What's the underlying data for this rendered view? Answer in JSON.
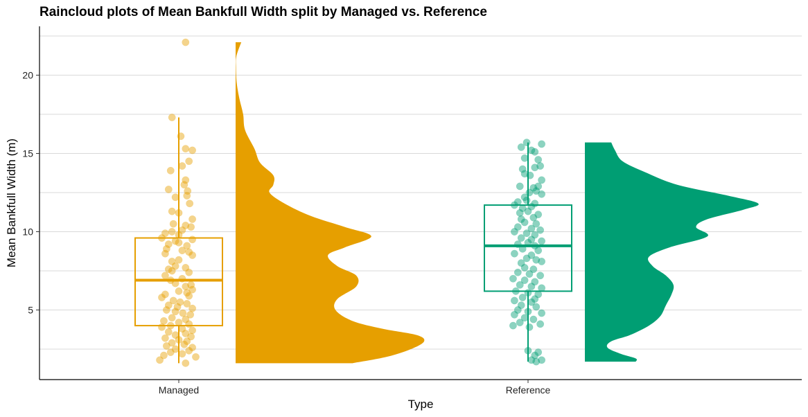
{
  "chart_data": {
    "type": "raincloud",
    "title": "Raincloud plots of Mean Bankfull Width split by Managed vs. Reference",
    "xlabel": "Type",
    "ylabel": "Mean Bankfull Width (m)",
    "ylim": [
      1.5,
      22.3
    ],
    "yticks": [
      5,
      10,
      15,
      20
    ],
    "grid": "horizontal",
    "legend": "none",
    "categories": [
      "Managed",
      "Reference"
    ],
    "series": [
      {
        "name": "Managed",
        "color": "#E69F00",
        "box": {
          "min": 1.6,
          "q1": 4.0,
          "median": 6.9,
          "q3": 9.6,
          "max": 17.3
        },
        "range": [
          1.6,
          22.1
        ],
        "density": [
          [
            1.6,
            0.62
          ],
          [
            2.0,
            0.8
          ],
          [
            2.5,
            0.93
          ],
          [
            3.0,
            1.0
          ],
          [
            3.4,
            0.96
          ],
          [
            3.8,
            0.78
          ],
          [
            4.3,
            0.62
          ],
          [
            5.0,
            0.53
          ],
          [
            5.7,
            0.54
          ],
          [
            6.5,
            0.64
          ],
          [
            7.2,
            0.64
          ],
          [
            7.8,
            0.54
          ],
          [
            8.5,
            0.49
          ],
          [
            9.0,
            0.58
          ],
          [
            9.7,
            0.72
          ],
          [
            10.3,
            0.58
          ],
          [
            11.0,
            0.4
          ],
          [
            11.8,
            0.26
          ],
          [
            12.5,
            0.18
          ],
          [
            13.0,
            0.2
          ],
          [
            13.6,
            0.2
          ],
          [
            14.4,
            0.13
          ],
          [
            15.3,
            0.1
          ],
          [
            16.5,
            0.05
          ],
          [
            17.5,
            0.04
          ],
          [
            18.5,
            0.02
          ],
          [
            19.5,
            0.006
          ],
          [
            20.5,
            0.002
          ],
          [
            21.2,
            0.004
          ],
          [
            22.1,
            0.03
          ]
        ],
        "points": [
          [
            0.1,
            22.1
          ],
          [
            -0.1,
            17.3
          ],
          [
            0.03,
            16.1
          ],
          [
            0.1,
            15.3
          ],
          [
            0.2,
            15.2
          ],
          [
            0.15,
            14.5
          ],
          [
            -0.12,
            13.9
          ],
          [
            0.05,
            14.2
          ],
          [
            0.1,
            13.3
          ],
          [
            -0.15,
            12.7
          ],
          [
            0.08,
            13.0
          ],
          [
            0.13,
            12.6
          ],
          [
            -0.05,
            12.2
          ],
          [
            0.12,
            12.3
          ],
          [
            0.16,
            11.8
          ],
          [
            -0.1,
            11.3
          ],
          [
            0.0,
            11.2
          ],
          [
            0.2,
            10.8
          ],
          [
            -0.08,
            10.5
          ],
          [
            0.1,
            10.4
          ],
          [
            0.18,
            10.3
          ],
          [
            -0.2,
            9.9
          ],
          [
            -0.1,
            10.0
          ],
          [
            0.0,
            9.8
          ],
          [
            0.05,
            10.1
          ],
          [
            -0.25,
            9.6
          ],
          [
            -0.05,
            9.4
          ],
          [
            -0.15,
            9.2
          ],
          [
            0.0,
            9.3
          ],
          [
            0.12,
            9.1
          ],
          [
            0.2,
            9.5
          ],
          [
            -0.18,
            8.9
          ],
          [
            -0.2,
            8.6
          ],
          [
            0.05,
            8.8
          ],
          [
            0.15,
            8.7
          ],
          [
            0.2,
            8.5
          ],
          [
            -0.1,
            8.1
          ],
          [
            0.0,
            8.2
          ],
          [
            -0.05,
            7.8
          ],
          [
            0.1,
            7.7
          ],
          [
            -0.15,
            7.6
          ],
          [
            0.15,
            7.4
          ],
          [
            -0.2,
            7.2
          ],
          [
            -0.1,
            7.5
          ],
          [
            0.05,
            7.0
          ],
          [
            -0.12,
            6.9
          ],
          [
            0.18,
            6.6
          ],
          [
            0.1,
            6.5
          ],
          [
            -0.05,
            6.7
          ],
          [
            0.2,
            6.3
          ],
          [
            0.12,
            6.1
          ],
          [
            -0.2,
            6.0
          ],
          [
            0.0,
            6.2
          ],
          [
            0.15,
            5.9
          ],
          [
            -0.25,
            5.8
          ],
          [
            -0.08,
            5.6
          ],
          [
            0.02,
            5.5
          ],
          [
            0.12,
            5.4
          ],
          [
            -0.15,
            5.3
          ],
          [
            -0.02,
            5.2
          ],
          [
            0.2,
            5.1
          ],
          [
            -0.18,
            5.0
          ],
          [
            -0.05,
            4.9
          ],
          [
            0.06,
            4.8
          ],
          [
            0.17,
            4.7
          ],
          [
            -0.1,
            4.5
          ],
          [
            0.1,
            4.4
          ],
          [
            -0.22,
            4.3
          ],
          [
            0.0,
            4.2
          ],
          [
            0.15,
            4.1
          ],
          [
            -0.12,
            4.0
          ],
          [
            -0.25,
            3.9
          ],
          [
            0.05,
            3.8
          ],
          [
            0.2,
            3.7
          ],
          [
            -0.15,
            3.6
          ],
          [
            0.1,
            3.5
          ],
          [
            -0.05,
            3.4
          ],
          [
            0.18,
            3.3
          ],
          [
            -0.2,
            3.2
          ],
          [
            0.0,
            3.1
          ],
          [
            0.12,
            3.0
          ],
          [
            -0.1,
            2.9
          ],
          [
            0.08,
            2.8
          ],
          [
            -0.18,
            2.7
          ],
          [
            0.2,
            2.6
          ],
          [
            -0.05,
            2.5
          ],
          [
            0.15,
            2.4
          ],
          [
            -0.12,
            2.3
          ],
          [
            0.05,
            2.2
          ],
          [
            -0.22,
            2.1
          ],
          [
            0.25,
            2.0
          ],
          [
            -0.28,
            1.8
          ],
          [
            0.1,
            1.6
          ]
        ]
      },
      {
        "name": "Reference",
        "color": "#009E73",
        "box": {
          "min": 1.7,
          "q1": 6.2,
          "median": 9.1,
          "q3": 11.7,
          "max": 15.7
        },
        "range": [
          1.7,
          15.7
        ],
        "density": [
          [
            1.7,
            0.27
          ],
          [
            1.9,
            0.27
          ],
          [
            2.2,
            0.19
          ],
          [
            2.6,
            0.12
          ],
          [
            3.0,
            0.14
          ],
          [
            3.4,
            0.24
          ],
          [
            4.0,
            0.34
          ],
          [
            4.6,
            0.4
          ],
          [
            5.3,
            0.43
          ],
          [
            6.0,
            0.46
          ],
          [
            6.6,
            0.47
          ],
          [
            7.2,
            0.43
          ],
          [
            7.8,
            0.36
          ],
          [
            8.4,
            0.34
          ],
          [
            9.0,
            0.45
          ],
          [
            9.7,
            0.65
          ],
          [
            10.3,
            0.59
          ],
          [
            10.8,
            0.65
          ],
          [
            11.4,
            0.84
          ],
          [
            11.8,
            0.92
          ],
          [
            12.3,
            0.76
          ],
          [
            13.0,
            0.49
          ],
          [
            13.8,
            0.32
          ],
          [
            14.5,
            0.2
          ],
          [
            15.2,
            0.16
          ],
          [
            15.7,
            0.14
          ]
        ],
        "points": [
          [
            -0.1,
            15.4
          ],
          [
            -0.02,
            15.7
          ],
          [
            0.05,
            15.2
          ],
          [
            0.1,
            15.1
          ],
          [
            0.2,
            15.6
          ],
          [
            -0.05,
            14.7
          ],
          [
            0.15,
            14.6
          ],
          [
            -0.08,
            14.0
          ],
          [
            0.1,
            14.1
          ],
          [
            0.18,
            14.2
          ],
          [
            -0.05,
            13.7
          ],
          [
            0.03,
            13.6
          ],
          [
            0.2,
            13.3
          ],
          [
            -0.12,
            12.9
          ],
          [
            0.08,
            12.8
          ],
          [
            0.15,
            12.9
          ],
          [
            0.02,
            12.5
          ],
          [
            0.12,
            12.6
          ],
          [
            -0.05,
            12.2
          ],
          [
            0.2,
            12.4
          ],
          [
            -0.15,
            11.9
          ],
          [
            -0.02,
            12.0
          ],
          [
            0.1,
            11.8
          ],
          [
            -0.2,
            11.7
          ],
          [
            -0.08,
            11.5
          ],
          [
            0.05,
            11.6
          ],
          [
            -0.12,
            11.2
          ],
          [
            0.0,
            11.3
          ],
          [
            0.15,
            11.1
          ],
          [
            -0.1,
            10.8
          ],
          [
            0.08,
            10.9
          ],
          [
            -0.05,
            10.6
          ],
          [
            0.12,
            10.5
          ],
          [
            -0.15,
            10.3
          ],
          [
            0.05,
            10.2
          ],
          [
            0.18,
            10.1
          ],
          [
            -0.2,
            10.0
          ],
          [
            -0.02,
            9.9
          ],
          [
            0.1,
            9.8
          ],
          [
            -0.1,
            9.6
          ],
          [
            0.05,
            9.5
          ],
          [
            0.2,
            9.4
          ],
          [
            -0.15,
            9.2
          ],
          [
            0.0,
            9.3
          ],
          [
            0.1,
            9.1
          ],
          [
            -0.08,
            8.9
          ],
          [
            0.15,
            8.8
          ],
          [
            -0.2,
            8.6
          ],
          [
            0.05,
            8.5
          ],
          [
            -0.02,
            8.3
          ],
          [
            0.12,
            8.2
          ],
          [
            -0.1,
            8.0
          ],
          [
            0.2,
            8.1
          ],
          [
            -0.05,
            7.7
          ],
          [
            0.08,
            7.6
          ],
          [
            -0.15,
            7.4
          ],
          [
            0.02,
            7.3
          ],
          [
            0.18,
            7.2
          ],
          [
            -0.22,
            7.0
          ],
          [
            -0.05,
            6.9
          ],
          [
            0.1,
            6.8
          ],
          [
            -0.12,
            6.6
          ],
          [
            0.05,
            6.5
          ],
          [
            0.2,
            6.4
          ],
          [
            -0.18,
            6.2
          ],
          [
            0.0,
            6.1
          ],
          [
            0.15,
            6.0
          ],
          [
            -0.08,
            5.8
          ],
          [
            0.1,
            5.7
          ],
          [
            -0.2,
            5.6
          ],
          [
            0.05,
            5.5
          ],
          [
            -0.1,
            5.3
          ],
          [
            0.12,
            5.2
          ],
          [
            -0.15,
            5.0
          ],
          [
            0.0,
            4.9
          ],
          [
            0.2,
            4.8
          ],
          [
            -0.2,
            4.7
          ],
          [
            -0.05,
            4.5
          ],
          [
            0.08,
            4.4
          ],
          [
            -0.12,
            4.2
          ],
          [
            0.18,
            4.1
          ],
          [
            -0.22,
            4.0
          ],
          [
            0.02,
            3.9
          ],
          [
            0.0,
            2.4
          ],
          [
            0.15,
            2.3
          ],
          [
            0.1,
            2.1
          ],
          [
            0.05,
            1.8
          ],
          [
            0.12,
            1.7
          ],
          [
            0.2,
            1.8
          ]
        ]
      }
    ]
  }
}
